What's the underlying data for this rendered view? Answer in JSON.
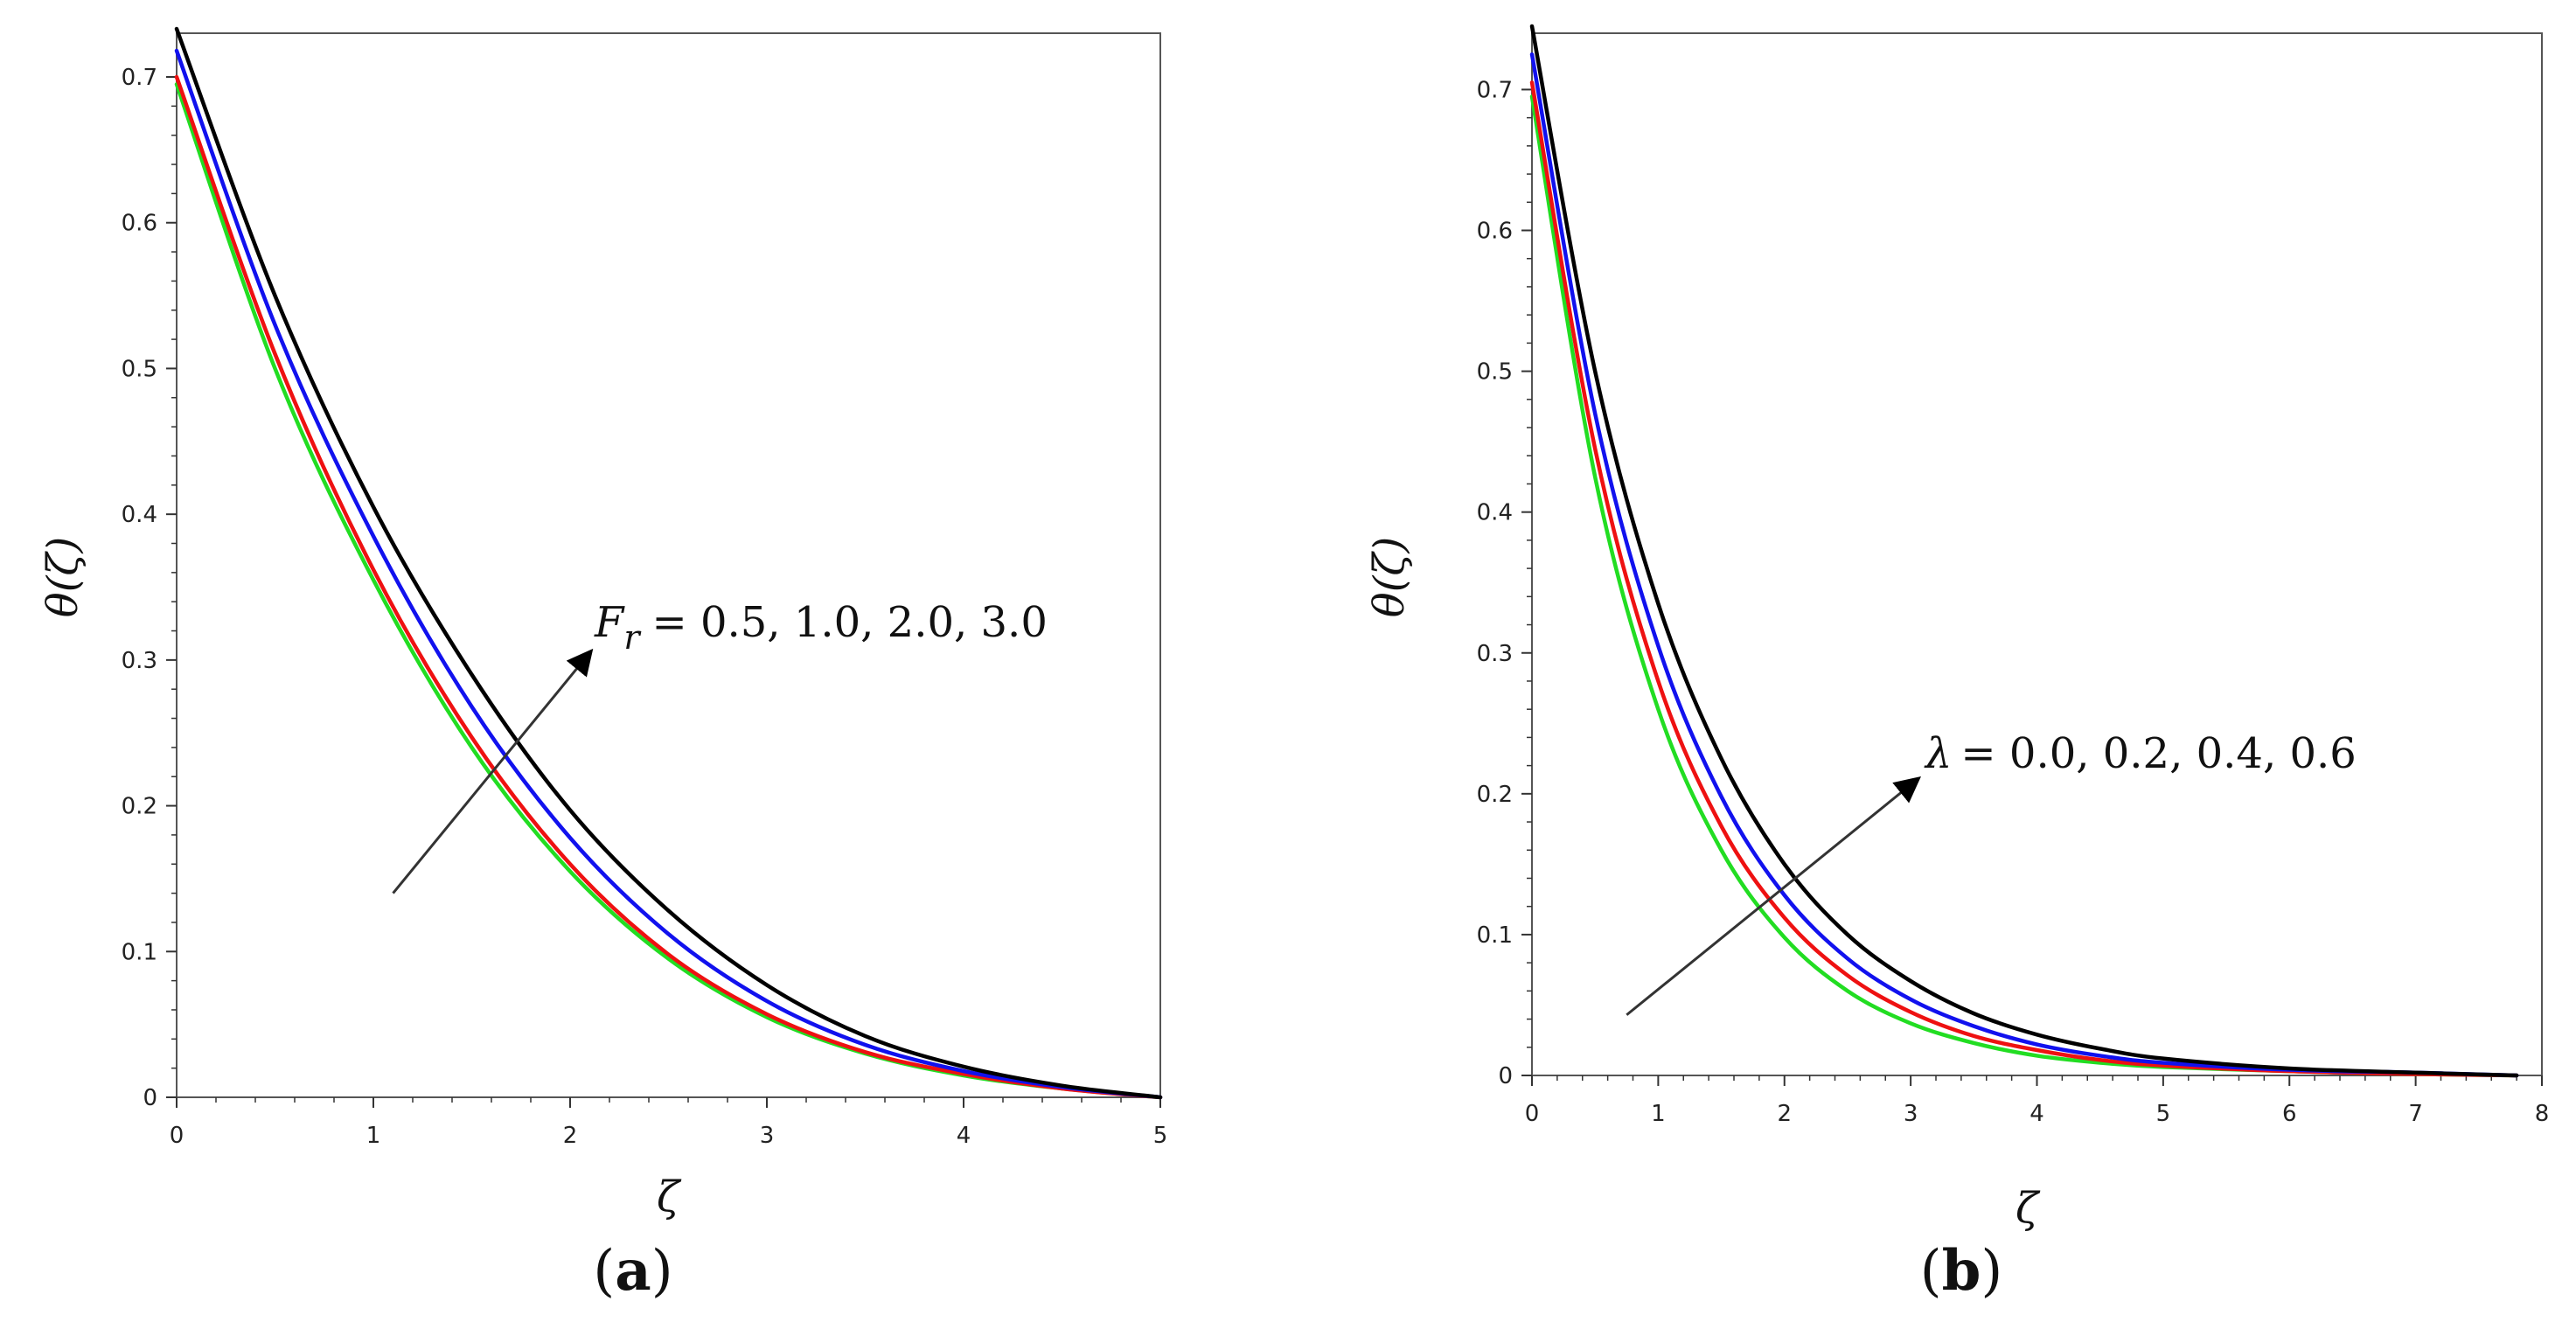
{
  "chart_data": [
    {
      "type": "line",
      "panel": "a",
      "caption_open": "(",
      "caption_letter": "a",
      "caption_close": ")",
      "xlabel": "ζ",
      "ylabel": "θ(ζ)",
      "xlim": [
        0,
        5
      ],
      "ylim": [
        0,
        0.73
      ],
      "xticks": [
        0,
        1,
        2,
        3,
        4,
        5
      ],
      "xtick_labels": [
        "0",
        "1",
        "2",
        "3",
        "4",
        "5"
      ],
      "yticks": [
        0,
        0.1,
        0.2,
        0.3,
        0.4,
        0.5,
        0.6,
        0.7
      ],
      "ytick_labels": [
        "0",
        "0.1",
        "0.2",
        "0.3",
        "0.4",
        "0.5",
        "0.6",
        "0.7"
      ],
      "annotation": {
        "lhs_symbol": "F",
        "lhs_subscript": "r",
        "rhs": "= 0.5, 1.0, 2.0, 3.0",
        "arrow_from": [
          1.1,
          0.14
        ],
        "arrow_to": [
          2.1,
          0.305
        ]
      },
      "x": [
        0,
        0.5,
        1,
        1.5,
        2,
        2.5,
        3,
        3.5,
        4,
        4.5,
        5
      ],
      "series": [
        {
          "name": "F_r = 0.5",
          "color": "#22dd22",
          "values": [
            0.695,
            0.5,
            0.355,
            0.24,
            0.155,
            0.095,
            0.055,
            0.03,
            0.015,
            0.006,
            0
          ]
        },
        {
          "name": "F_r = 1.0",
          "color": "#ee1111",
          "values": [
            0.7,
            0.51,
            0.362,
            0.247,
            0.16,
            0.098,
            0.057,
            0.031,
            0.016,
            0.006,
            0
          ]
        },
        {
          "name": "F_r = 2.0",
          "color": "#1111ee",
          "values": [
            0.718,
            0.53,
            0.385,
            0.268,
            0.178,
            0.112,
            0.066,
            0.036,
            0.018,
            0.007,
            0
          ]
        },
        {
          "name": "F_r = 3.0",
          "color": "#000000",
          "values": [
            0.733,
            0.55,
            0.405,
            0.29,
            0.197,
            0.128,
            0.077,
            0.042,
            0.021,
            0.008,
            0
          ]
        }
      ]
    },
    {
      "type": "line",
      "panel": "b",
      "caption_open": "(",
      "caption_letter": "b",
      "caption_close": ")",
      "xlabel": "ζ",
      "ylabel": "θ(ζ)",
      "xlim": [
        0,
        8
      ],
      "ylim": [
        0,
        0.74
      ],
      "xticks": [
        0,
        1,
        2,
        3,
        4,
        5,
        6,
        7,
        8
      ],
      "xtick_labels": [
        "0",
        "1",
        "2",
        "3",
        "4",
        "5",
        "6",
        "7",
        "8"
      ],
      "yticks": [
        0,
        0.1,
        0.2,
        0.3,
        0.4,
        0.5,
        0.6,
        0.7
      ],
      "ytick_labels": [
        "0",
        "0.1",
        "0.2",
        "0.3",
        "0.4",
        "0.5",
        "0.6",
        "0.7"
      ],
      "annotation": {
        "lhs_symbol": "λ",
        "lhs_subscript": "",
        "rhs": "= 0.0, 0.2, 0.4, 0.6",
        "arrow_from": [
          0.75,
          0.043
        ],
        "arrow_to": [
          3.05,
          0.21
        ]
      },
      "x": [
        0,
        0.5,
        1,
        1.5,
        2,
        2.5,
        3,
        3.5,
        4,
        4.5,
        5,
        6,
        7,
        7.8
      ],
      "series": [
        {
          "name": "λ = 0.0",
          "color": "#22dd22",
          "values": [
            0.695,
            0.425,
            0.26,
            0.16,
            0.098,
            0.06,
            0.037,
            0.023,
            0.014,
            0.009,
            0.006,
            0.003,
            0.001,
            0
          ]
        },
        {
          "name": "λ = 0.2",
          "color": "#ee1111",
          "values": [
            0.705,
            0.445,
            0.28,
            0.177,
            0.112,
            0.071,
            0.045,
            0.028,
            0.018,
            0.011,
            0.007,
            0.003,
            0.001,
            0
          ]
        },
        {
          "name": "λ = 0.4",
          "color": "#1111ee",
          "values": [
            0.725,
            0.47,
            0.305,
            0.198,
            0.128,
            0.083,
            0.054,
            0.035,
            0.022,
            0.014,
            0.009,
            0.004,
            0.002,
            0
          ]
        },
        {
          "name": "λ = 0.6",
          "color": "#000000",
          "values": [
            0.745,
            0.5,
            0.335,
            0.225,
            0.15,
            0.1,
            0.067,
            0.044,
            0.029,
            0.019,
            0.012,
            0.005,
            0.002,
            0
          ]
        }
      ]
    }
  ]
}
